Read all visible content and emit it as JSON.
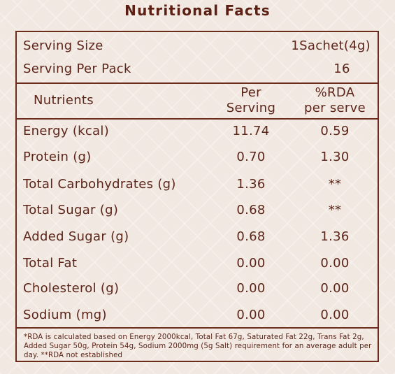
{
  "title": "Nutritional Facts",
  "serving": {
    "size_label": "Serving Size",
    "size_value": "1Sachet(4g)",
    "per_pack_label": "Serving Per Pack",
    "per_pack_value": "16"
  },
  "headers": {
    "nutrients": "Nutrients",
    "per_line1": "Per",
    "per_line2": "Serving",
    "rda_line1": "%RDA",
    "rda_line2": "per serve"
  },
  "rows": [
    {
      "name": "Energy (kcal)",
      "per": "11.74",
      "rda": "0.59"
    },
    {
      "name": "Protein (g)",
      "per": "0.70",
      "rda": "1.30"
    },
    {
      "name": "Total Carbohydrates (g)",
      "per": "1.36",
      "rda": "**"
    },
    {
      "name": "Total Sugar (g)",
      "per": "0.68",
      "rda": "**"
    },
    {
      "name": "Added Sugar (g)",
      "per": "0.68",
      "rda": "1.36"
    },
    {
      "name": "Total Fat",
      "per": "0.00",
      "rda": "0.00"
    },
    {
      "name": "Cholesterol (g)",
      "per": "0.00",
      "rda": "0.00"
    },
    {
      "name": "Sodium (mg)",
      "per": "0.00",
      "rda": "0.00"
    }
  ],
  "footnote": "*RDA is calculated based on Energy 2000kcal, Total Fat 67g, Saturated Fat 22g, Trans Fat 2g, Added Sugar 50g, Protein 54g, Sodium 2000mg (5g Salt) requirement for an average adult per day.  **RDA not established"
}
